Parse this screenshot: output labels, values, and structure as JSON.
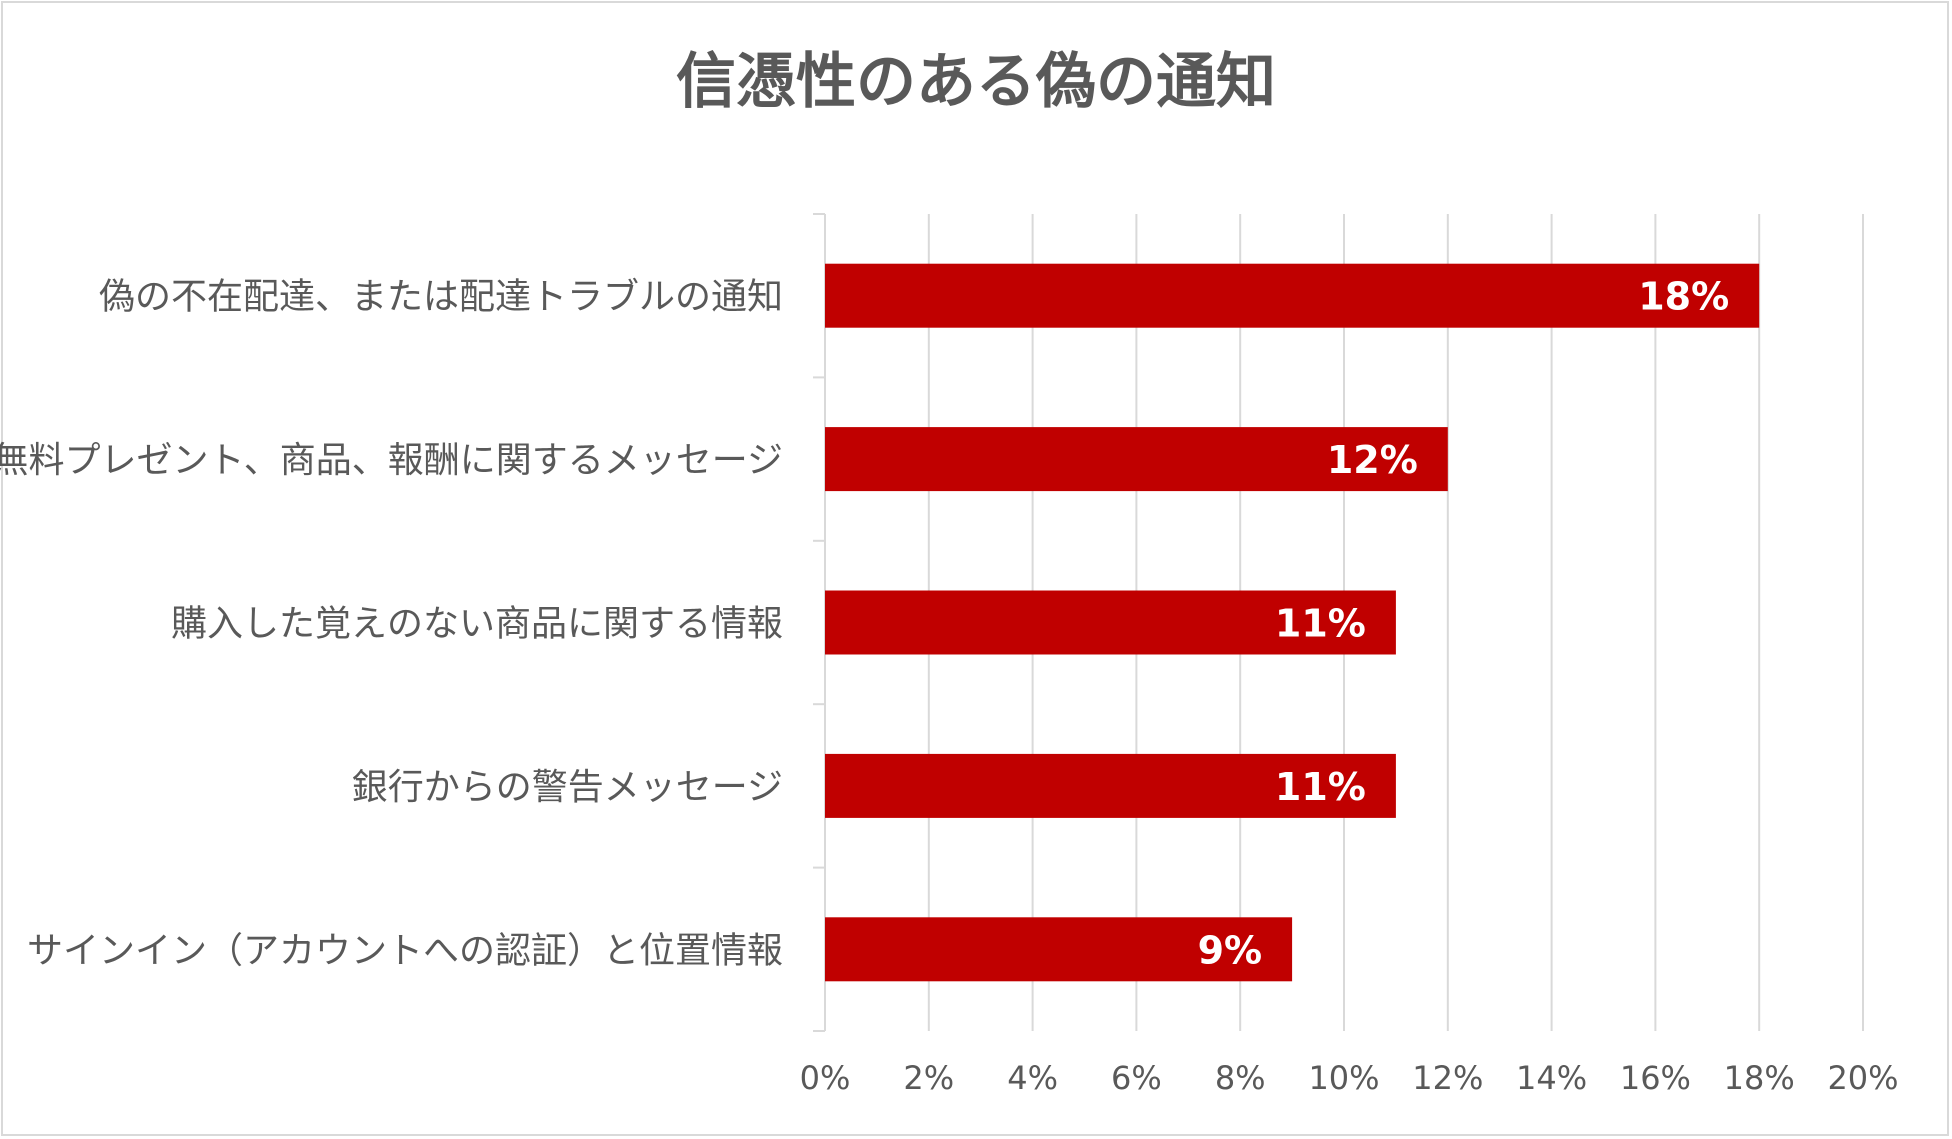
{
  "chart_data": {
    "type": "bar",
    "orientation": "horizontal",
    "title": "信憑性のある偽の通知",
    "xlabel": "",
    "ylabel": "",
    "categories": [
      "偽の不在配達、または配達トラブルの通知",
      "無料プレゼント、商品、報酬に関するメッセージ",
      "購入した覚えのない商品に関する情報",
      "銀行からの警告メッセージ",
      "サインイン（アカウントへの認証）と位置情報"
    ],
    "values": [
      18,
      12,
      11,
      11,
      9
    ],
    "data_labels": [
      "18%",
      "12%",
      "11%",
      "11%",
      "9%"
    ],
    "xlim": [
      0,
      20
    ],
    "x_ticks": [
      0,
      2,
      4,
      6,
      8,
      10,
      12,
      14,
      16,
      18,
      20
    ],
    "x_tick_labels": [
      "0%",
      "2%",
      "4%",
      "6%",
      "8%",
      "10%",
      "12%",
      "14%",
      "16%",
      "18%",
      "20%"
    ],
    "grid": "vertical",
    "legend": "none",
    "colors": {
      "bar": "#c00000",
      "grid": "#d9d9d9",
      "text": "#595959",
      "data_label": "#ffffff"
    }
  }
}
